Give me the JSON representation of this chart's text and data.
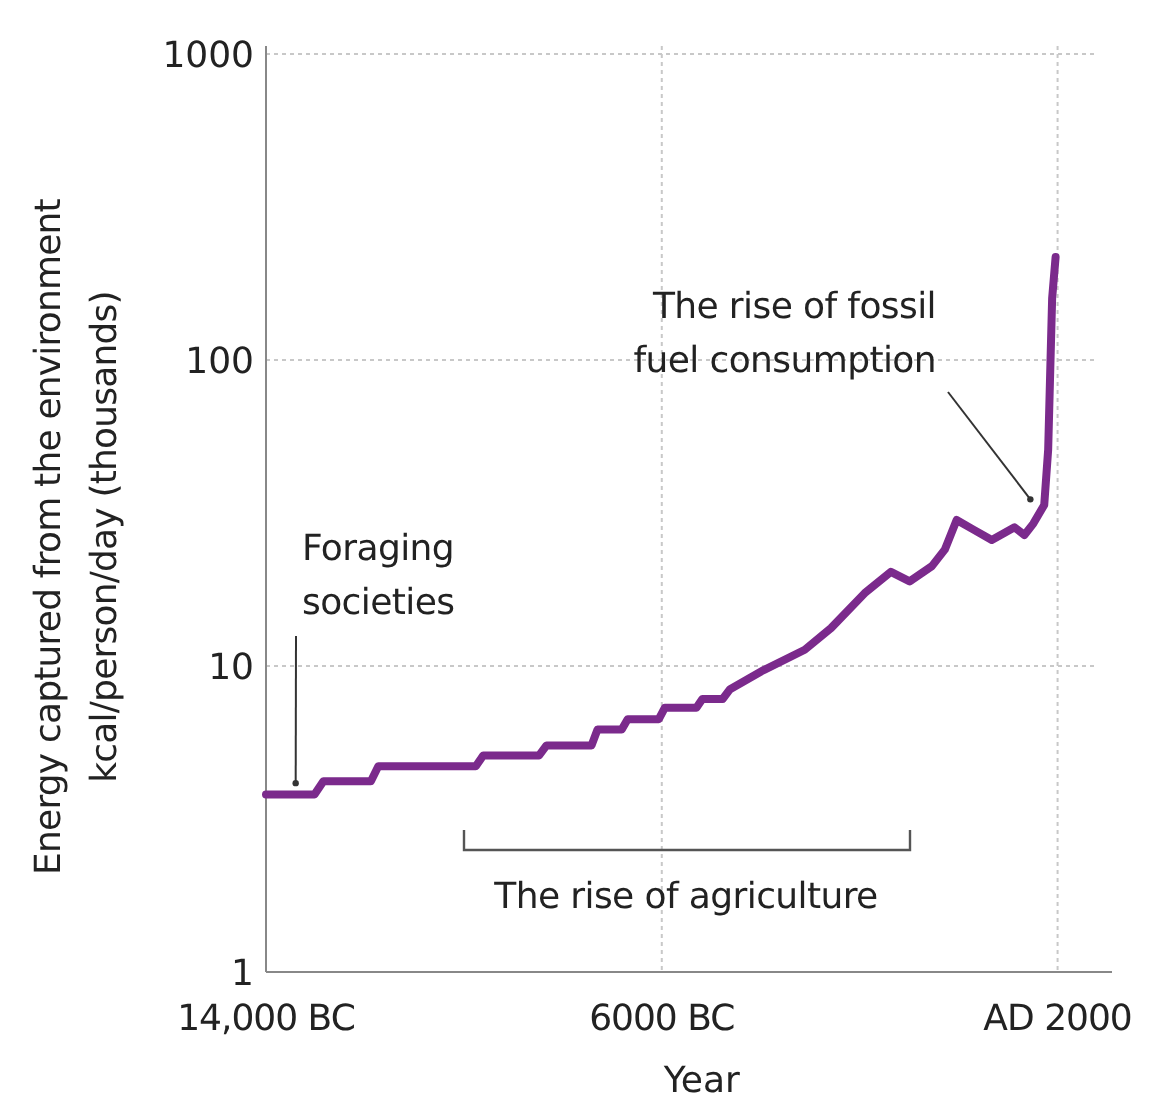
{
  "chart_data": {
    "type": "line",
    "xlabel": "Year",
    "ylabel": "Energy captured from the environment\nkcal/person/day (thousands)",
    "xlim": [
      -14000,
      3100
    ],
    "ylim": [
      1,
      1000
    ],
    "log": "y",
    "grid": true,
    "marker": "none",
    "line_style": "solid",
    "xticks": [
      {
        "value": -14000,
        "label": "14,000 BC"
      },
      {
        "value": -6000,
        "label": "6000 BC"
      },
      {
        "value": 2000,
        "label": "AD 2000"
      }
    ],
    "yticks": [
      1,
      10,
      100,
      1000
    ],
    "series": [
      {
        "color": "#7b2a8c",
        "x": [
          -14000,
          -13020,
          -12840,
          -11880,
          -11730,
          -9760,
          -9610,
          -8480,
          -8330,
          -7420,
          -7300,
          -6810,
          -6690,
          -6060,
          -5940,
          -5300,
          -5180,
          -4770,
          -4620,
          -3940,
          -3110,
          -2580,
          -1900,
          -1370,
          -990,
          -540,
          -280,
          -40,
          300,
          670,
          1130,
          1330,
          1510,
          1730,
          1810,
          1890,
          1960
        ],
        "values": [
          3.8,
          3.8,
          4.2,
          4.2,
          4.7,
          4.7,
          5.1,
          5.1,
          5.5,
          5.5,
          6.2,
          6.2,
          6.7,
          6.7,
          7.3,
          7.3,
          7.8,
          7.8,
          8.4,
          9.7,
          11.3,
          13.3,
          17.3,
          20.3,
          18.9,
          21.2,
          24,
          30,
          27.9,
          25.8,
          28.4,
          26.8,
          29.2,
          33.6,
          51,
          159,
          217
        ]
      }
    ],
    "annotations": [
      {
        "text": "Foraging societies",
        "x": -13400,
        "y": 3.9
      },
      {
        "text": "The rise of fossil fuel consumption",
        "x": 1450,
        "y": 33
      },
      "The rise of agriculture"
    ]
  }
}
